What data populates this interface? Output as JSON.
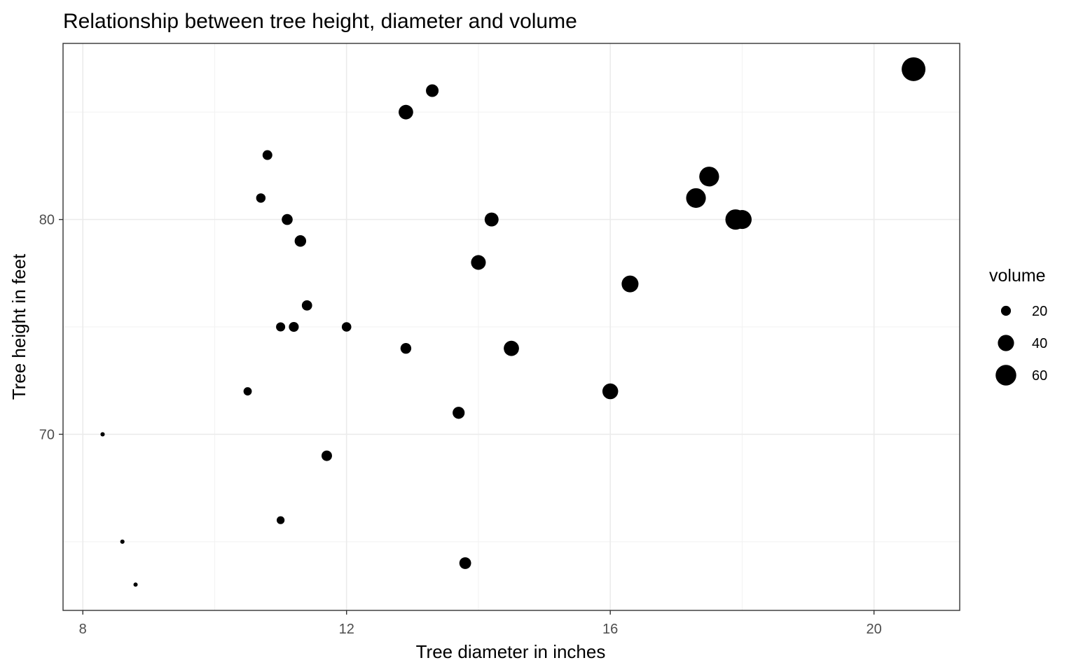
{
  "chart_data": {
    "type": "scatter",
    "title": "Relationship between tree height, diameter and volume",
    "xlabel": "Tree diameter in inches",
    "ylabel": "Tree height in feet",
    "xlim": [
      7.7,
      21.3
    ],
    "ylim": [
      61.8,
      88.2
    ],
    "x_ticks": [
      8,
      12,
      16,
      20
    ],
    "y_ticks": [
      70,
      80
    ],
    "x_tick_labels": [
      "8",
      "12",
      "16",
      "20"
    ],
    "y_tick_labels": [
      "70",
      "80"
    ],
    "grid": true,
    "size_variable": "volume",
    "legend": {
      "title": "volume",
      "position": "right",
      "entries": [
        {
          "label": "20",
          "value": 20
        },
        {
          "label": "40",
          "value": 40
        },
        {
          "label": "60",
          "value": 60
        }
      ]
    },
    "points": [
      {
        "x": 8.3,
        "y": 70,
        "size": 10.3
      },
      {
        "x": 8.6,
        "y": 65,
        "size": 10.3
      },
      {
        "x": 8.8,
        "y": 63,
        "size": 10.2
      },
      {
        "x": 10.5,
        "y": 72,
        "size": 16.4
      },
      {
        "x": 10.7,
        "y": 81,
        "size": 18.8
      },
      {
        "x": 10.8,
        "y": 83,
        "size": 19.7
      },
      {
        "x": 11.0,
        "y": 66,
        "size": 15.6
      },
      {
        "x": 11.0,
        "y": 75,
        "size": 18.2
      },
      {
        "x": 11.1,
        "y": 80,
        "size": 22.6
      },
      {
        "x": 11.2,
        "y": 75,
        "size": 19.9
      },
      {
        "x": 11.3,
        "y": 79,
        "size": 24.2
      },
      {
        "x": 11.4,
        "y": 76,
        "size": 21.0
      },
      {
        "x": 11.7,
        "y": 69,
        "size": 21.4
      },
      {
        "x": 12.0,
        "y": 75,
        "size": 19.1
      },
      {
        "x": 12.9,
        "y": 74,
        "size": 22.2
      },
      {
        "x": 12.9,
        "y": 85,
        "size": 33.8
      },
      {
        "x": 13.3,
        "y": 86,
        "size": 27.4
      },
      {
        "x": 13.7,
        "y": 71,
        "size": 25.7
      },
      {
        "x": 13.8,
        "y": 64,
        "size": 24.9
      },
      {
        "x": 14.0,
        "y": 78,
        "size": 34.5
      },
      {
        "x": 14.2,
        "y": 80,
        "size": 31.7
      },
      {
        "x": 14.5,
        "y": 74,
        "size": 36.3
      },
      {
        "x": 16.0,
        "y": 72,
        "size": 38.3
      },
      {
        "x": 16.3,
        "y": 77,
        "size": 42.6
      },
      {
        "x": 17.3,
        "y": 81,
        "size": 55.4
      },
      {
        "x": 17.5,
        "y": 82,
        "size": 55.7
      },
      {
        "x": 17.9,
        "y": 80,
        "size": 58.3
      },
      {
        "x": 18.0,
        "y": 80,
        "size": 51.5
      },
      {
        "x": 18.0,
        "y": 80,
        "size": 51.0
      },
      {
        "x": 20.6,
        "y": 87,
        "size": 77.0
      }
    ],
    "point_color": "#000000"
  }
}
